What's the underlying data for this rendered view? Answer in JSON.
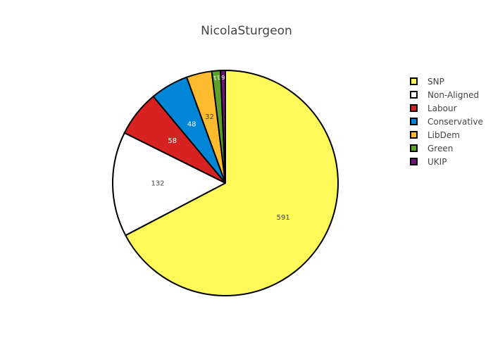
{
  "chart_data": {
    "type": "pie",
    "title": "NicolaSturgeon",
    "legend_position": "right",
    "slices": [
      {
        "label": "SNP",
        "value": 591,
        "color": "#fffa5a",
        "text_color": "#444444"
      },
      {
        "label": "Non-Aligned",
        "value": 132,
        "color": "#ffffff",
        "text_color": "#444444"
      },
      {
        "label": "Labour",
        "value": 58,
        "color": "#d62321",
        "text_color": "#ffffff"
      },
      {
        "label": "Conservative",
        "value": 48,
        "color": "#0085d7",
        "text_color": "#ffffff"
      },
      {
        "label": "LibDem",
        "value": 32,
        "color": "#fdbb30",
        "text_color": "#444444"
      },
      {
        "label": "Green",
        "value": 11,
        "color": "#5ba12b",
        "text_color": "#ffffff"
      },
      {
        "label": "UKIP",
        "value": 6,
        "color": "#70147a",
        "text_color": "#ffffff"
      }
    ]
  }
}
